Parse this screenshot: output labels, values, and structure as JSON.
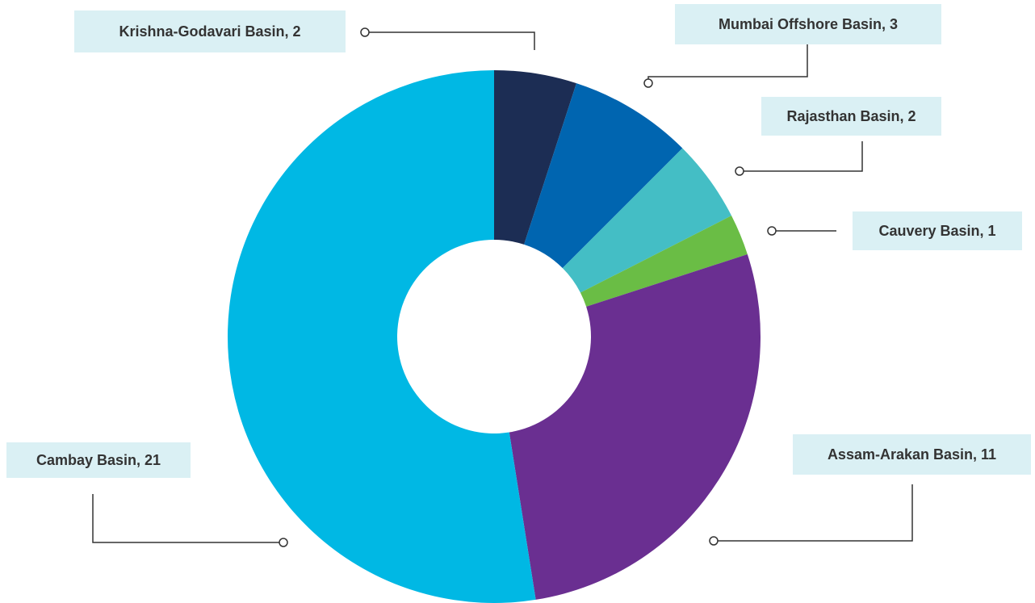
{
  "chart_data": {
    "type": "donut",
    "values": [
      2,
      3,
      2,
      1,
      11,
      21
    ],
    "value_labels": [
      "Krishna-Godavari Basin, 2",
      "Mumbai Offshore Basin, 3",
      "Rajasthan Basin, 2",
      "Cauvery Basin, 1",
      "Assam-Arakan Basin, 11",
      "Cambay Basin, 21"
    ],
    "colors": [
      "#1c2d54",
      "#0065b0",
      "#44bec5",
      "#6abd45",
      "#6a2f91",
      "#00b8e4"
    ]
  }
}
